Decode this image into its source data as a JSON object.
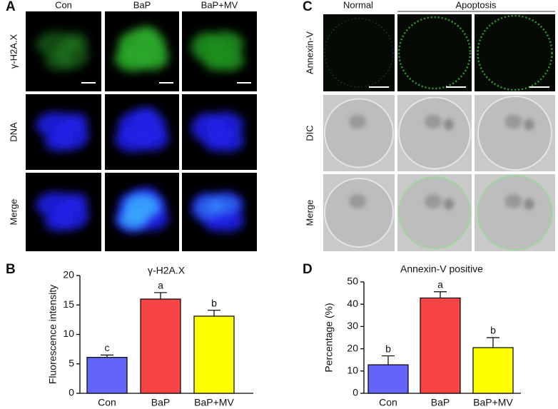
{
  "panel_labels": [
    "A",
    "B",
    "C",
    "D"
  ],
  "panel_a": {
    "columns": [
      "Con",
      "BaP",
      "BaP+MV"
    ],
    "rows": [
      "γ-H2A.X",
      "DNA",
      "Merge"
    ]
  },
  "panel_c": {
    "columns": [
      "Normal",
      "Apoptosis"
    ],
    "rows": [
      "Annexin-V",
      "DIC",
      "Merge"
    ]
  },
  "chart_data": [
    {
      "type": "bar",
      "title": "γ-H2A.X",
      "y_label": "Fluorescence intensity",
      "categories": [
        "Con",
        "BaP",
        "BaP+MV"
      ],
      "values": [
        6.1,
        16.0,
        13.1
      ],
      "errors": [
        0.4,
        1.1,
        1.0
      ],
      "annotations": [
        "c",
        "a",
        "b"
      ],
      "colors": [
        "#6464f8",
        "#f84444",
        "#ffff00"
      ],
      "ylim": [
        0,
        20
      ],
      "yticks": [
        0,
        5,
        10,
        15,
        20
      ]
    },
    {
      "type": "bar",
      "title": "Annexin-V positive",
      "y_label": "Percentage (%)",
      "categories": [
        "Con",
        "BaP",
        "BaP+MV"
      ],
      "values": [
        12.8,
        42.8,
        20.5
      ],
      "errors": [
        4.0,
        2.8,
        4.5
      ],
      "annotations": [
        "b",
        "a",
        "b"
      ],
      "colors": [
        "#6464f8",
        "#f84444",
        "#ffff00"
      ],
      "ylim": [
        0,
        50
      ],
      "yticks": [
        0,
        10,
        20,
        30,
        40,
        50
      ]
    }
  ]
}
